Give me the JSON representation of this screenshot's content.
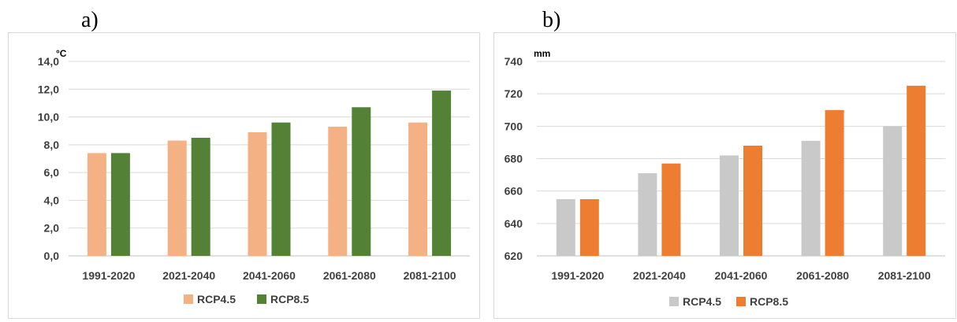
{
  "panels": {
    "a_label": "a)",
    "b_label": "b)"
  },
  "chart_data": [
    {
      "type": "bar",
      "unit_label": "°C",
      "categories": [
        "1991-2020",
        "2021-2040",
        "2041-2060",
        "2061-2080",
        "2081-2100"
      ],
      "series": [
        {
          "name": "RCP4.5",
          "color": "#f4b183",
          "values": [
            7.4,
            8.3,
            8.9,
            9.3,
            9.6
          ]
        },
        {
          "name": "RCP8.5",
          "color": "#538135",
          "values": [
            7.4,
            8.5,
            9.6,
            10.7,
            11.9
          ]
        }
      ],
      "ylim": [
        0,
        14
      ],
      "yticks": [
        "0,0",
        "2,0",
        "4,0",
        "6,0",
        "8,0",
        "10,0",
        "12,0",
        "14,0"
      ],
      "grid": true,
      "legend": "bottom"
    },
    {
      "type": "bar",
      "unit_label": "mm",
      "categories": [
        "1991-2020",
        "2021-2040",
        "2041-2060",
        "2061-2080",
        "2081-2100"
      ],
      "series": [
        {
          "name": "RCP4.5",
          "color": "#c9c9c9",
          "values": [
            655,
            671,
            682,
            691,
            700
          ]
        },
        {
          "name": "RCP8.5",
          "color": "#ed7d31",
          "values": [
            655,
            677,
            688,
            710,
            725
          ]
        }
      ],
      "ylim": [
        620,
        740
      ],
      "yticks": [
        "620",
        "640",
        "660",
        "680",
        "700",
        "720",
        "740"
      ],
      "grid": true,
      "legend": "bottom"
    }
  ]
}
